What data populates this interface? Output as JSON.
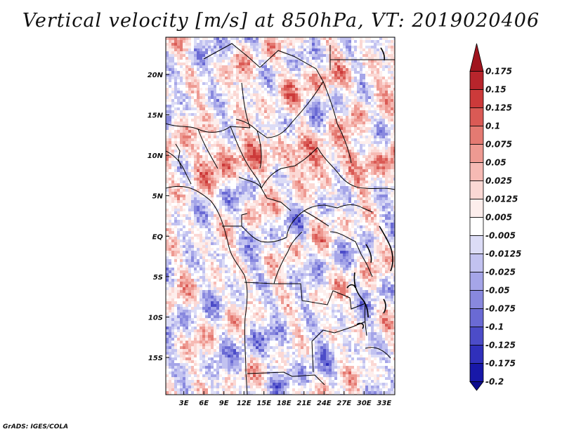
{
  "title": "Vertical velocity [m/s] at 850hPa, VT: 2019020406",
  "footer": "GrADS: IGES/COLA",
  "map": {
    "variable": "Vertical velocity",
    "units": "m/s",
    "level": "850hPa",
    "valid_time": "2019020406",
    "lat_labels": [
      "20N",
      "15N",
      "10N",
      "5N",
      "EQ",
      "5S",
      "10S",
      "15S"
    ],
    "lat_values": [
      20,
      15,
      10,
      5,
      0,
      -5,
      -10,
      -15
    ],
    "lon_labels": [
      "3E",
      "6E",
      "9E",
      "12E",
      "15E",
      "18E",
      "21E",
      "24E",
      "27E",
      "30E",
      "33E"
    ],
    "lon_values": [
      3,
      6,
      9,
      12,
      15,
      18,
      21,
      24,
      27,
      30,
      33
    ],
    "lat_range": [
      -19.6,
      24.6
    ],
    "lon_range": [
      0.3,
      34.6
    ]
  },
  "colorbar": {
    "labels": [
      "0.175",
      "0.15",
      "0.125",
      "0.1",
      "0.075",
      "0.05",
      "0.025",
      "0.0125",
      "0.005",
      "-0.005",
      "-0.0125",
      "-0.025",
      "-0.05",
      "-0.075",
      "-0.1",
      "-0.125",
      "-0.175",
      "-0.2"
    ],
    "colors": [
      "#a0141e",
      "#b8252c",
      "#cc3a3a",
      "#da5a55",
      "#e47a72",
      "#ee9a92",
      "#f6bab4",
      "#fbd8d4",
      "#fdeeec",
      "#ffffff",
      "#dcdcf6",
      "#c2c2f0",
      "#a5a5e8",
      "#8888de",
      "#6a6ad4",
      "#4c4cc8",
      "#3030bb",
      "#1818a8",
      "#0c0c8e"
    ]
  }
}
